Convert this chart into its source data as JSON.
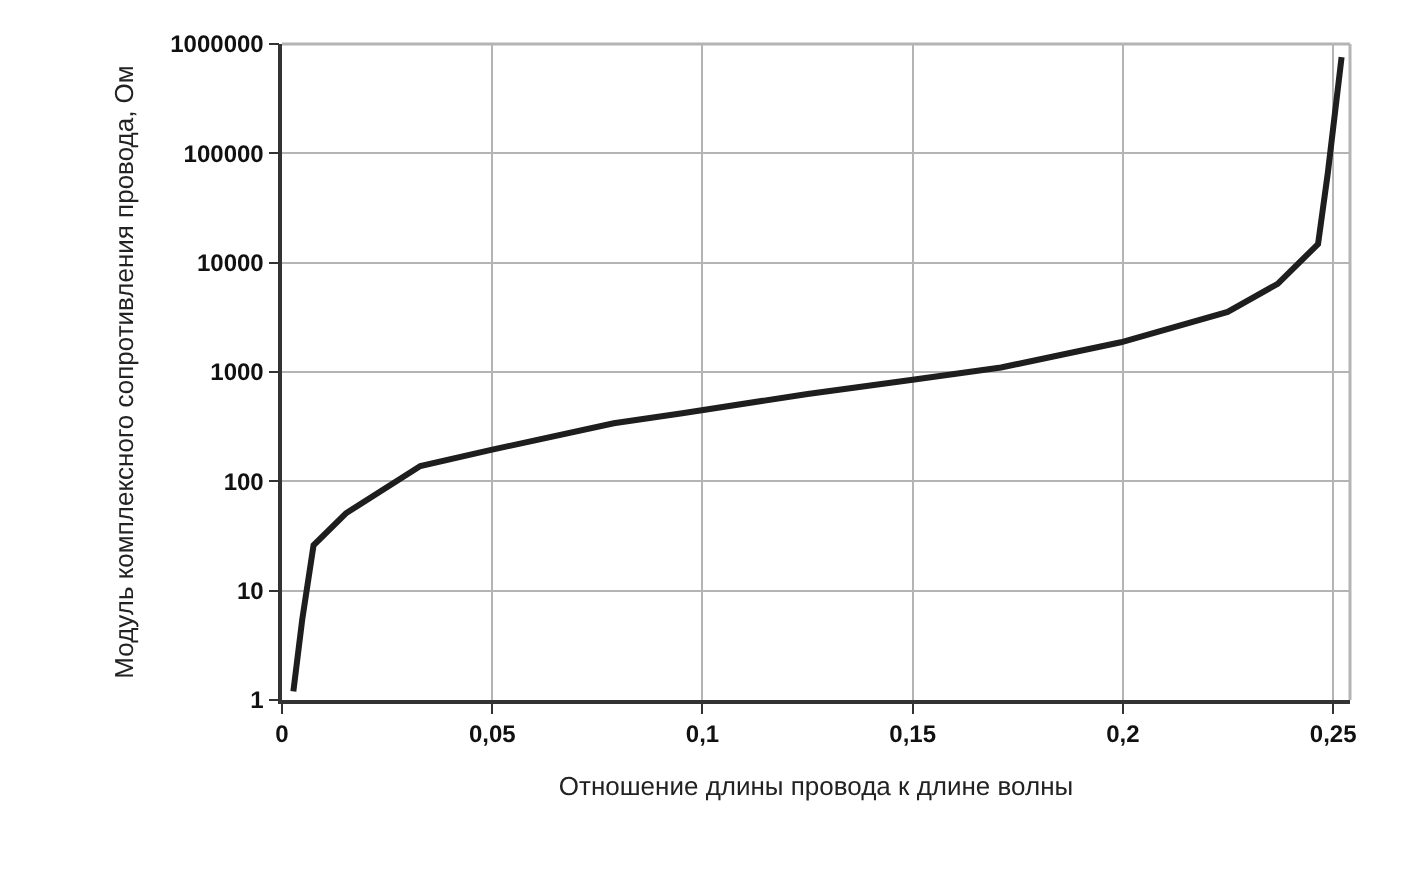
{
  "chart_data": {
    "type": "line",
    "xlabel": "Отношение длины провода к длине волны",
    "ylabel": "Модуль комплексного сопротивления провода, Ом",
    "x": [
      0.0027,
      0.0048,
      0.0075,
      0.0152,
      0.0329,
      0.05,
      0.0789,
      0.0952,
      0.125,
      0.15,
      0.171,
      0.1995,
      0.2249,
      0.2368,
      0.2464,
      0.2487,
      0.252
    ],
    "series": [
      {
        "color": "#1e1e1e",
        "values": [
          1.2,
          5.4,
          26,
          51,
          138,
          195,
          340,
          420,
          630,
          850,
          1100,
          1870,
          3550,
          6400,
          14800,
          65000,
          760000
        ]
      }
    ],
    "log": "y",
    "xlim": [
      0,
      0.254
    ],
    "ylim": [
      1,
      1000000
    ],
    "xticks": [
      0,
      {
        "value": 0.05,
        "label": "0,05"
      },
      {
        "value": 0.1,
        "label": "0,1"
      },
      {
        "value": 0.15,
        "label": "0,15"
      },
      {
        "value": 0.2,
        "label": "0,2"
      },
      {
        "value": 0.25,
        "label": "0,25"
      }
    ],
    "yticks": [
      1,
      10,
      100,
      1000,
      10000,
      100000,
      1000000
    ],
    "grid": true,
    "marker": "none",
    "line_style": "solid"
  }
}
